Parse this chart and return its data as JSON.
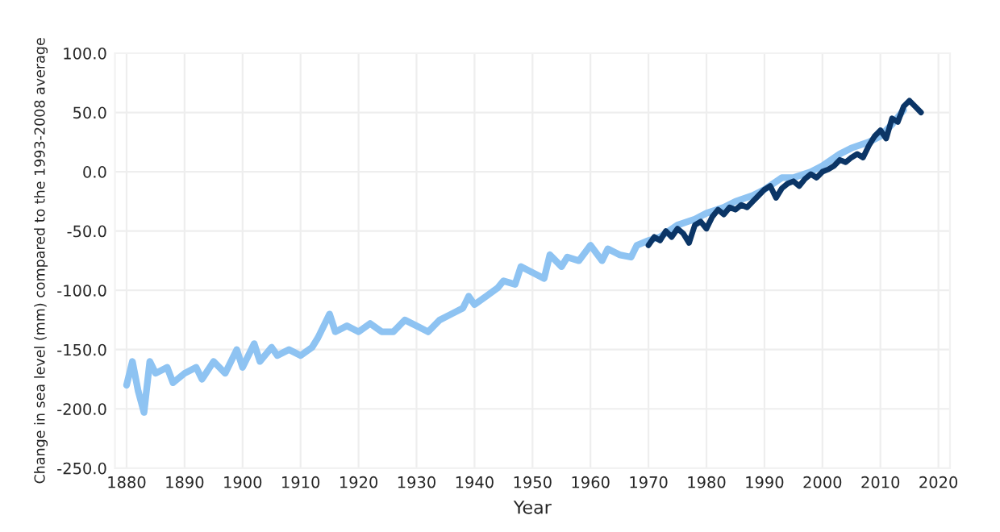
{
  "chart_data": {
    "type": "line",
    "xlabel": "Year",
    "ylabel": "Change in sea level (mm) compared to the 1993-2008 average",
    "xlim": [
      1878,
      2022
    ],
    "xticks": [
      1880,
      1890,
      1900,
      1910,
      1920,
      1930,
      1940,
      1950,
      1960,
      1970,
      1980,
      1990,
      2000,
      2010,
      2020
    ],
    "ylim": [
      -250,
      100
    ],
    "yticks": [
      {
        "value": -250,
        "label": "-250.0"
      },
      {
        "value": -200,
        "label": "-200.0"
      },
      {
        "value": -150,
        "label": "-150.0"
      },
      {
        "value": -100,
        "label": "-100.0"
      },
      {
        "value": -50,
        "label": "-50.0"
      },
      {
        "value": 0,
        "label": "0.0"
      },
      {
        "value": 50,
        "label": "50.0"
      },
      {
        "value": 100,
        "label": "100.0"
      }
    ],
    "grid": true,
    "legend": false,
    "marker": "none",
    "line_style": "solid",
    "series": [
      {
        "color": "#8ec3f2",
        "x": [
          1880,
          1881,
          1882,
          1883,
          1884,
          1885,
          1887,
          1888,
          1890,
          1892,
          1893,
          1895,
          1897,
          1899,
          1900,
          1902,
          1903,
          1905,
          1906,
          1908,
          1910,
          1912,
          1913,
          1915,
          1916,
          1918,
          1920,
          1922,
          1924,
          1926,
          1928,
          1930,
          1932,
          1934,
          1936,
          1938,
          1939,
          1940,
          1942,
          1944,
          1945,
          1947,
          1948,
          1950,
          1952,
          1953,
          1955,
          1956,
          1958,
          1960,
          1962,
          1963,
          1965,
          1967,
          1968,
          1970,
          1972,
          1975,
          1978,
          1980,
          1983,
          1985,
          1988,
          1990,
          1993,
          1995,
          1998,
          2000,
          2003,
          2005,
          2008,
          2010,
          2012,
          2014
        ],
        "values": [
          -180,
          -160,
          -185,
          -203,
          -160,
          -170,
          -165,
          -178,
          -170,
          -165,
          -175,
          -160,
          -170,
          -150,
          -165,
          -145,
          -160,
          -148,
          -155,
          -150,
          -155,
          -148,
          -140,
          -120,
          -135,
          -130,
          -135,
          -128,
          -135,
          -135,
          -125,
          -130,
          -135,
          -125,
          -120,
          -115,
          -105,
          -112,
          -105,
          -98,
          -92,
          -95,
          -80,
          -85,
          -90,
          -70,
          -80,
          -72,
          -75,
          -62,
          -75,
          -65,
          -70,
          -72,
          -62,
          -58,
          -55,
          -45,
          -40,
          -35,
          -30,
          -25,
          -20,
          -15,
          -5,
          -5,
          0,
          5,
          15,
          20,
          25,
          30,
          40,
          52
        ]
      },
      {
        "color": "#0b3566",
        "x": [
          1970,
          1971,
          1972,
          1973,
          1974,
          1975,
          1976,
          1977,
          1978,
          1979,
          1980,
          1981,
          1982,
          1983,
          1984,
          1985,
          1986,
          1987,
          1988,
          1989,
          1990,
          1991,
          1992,
          1993,
          1994,
          1995,
          1996,
          1997,
          1998,
          1999,
          2000,
          2001,
          2002,
          2003,
          2004,
          2005,
          2006,
          2007,
          2008,
          2009,
          2010,
          2011,
          2012,
          2013,
          2014,
          2015,
          2016,
          2017
        ],
        "values": [
          -62,
          -55,
          -58,
          -50,
          -55,
          -48,
          -52,
          -60,
          -45,
          -42,
          -48,
          -38,
          -32,
          -36,
          -30,
          -32,
          -28,
          -30,
          -25,
          -20,
          -15,
          -12,
          -22,
          -14,
          -10,
          -8,
          -12,
          -6,
          -2,
          -5,
          0,
          2,
          5,
          10,
          8,
          12,
          15,
          12,
          22,
          30,
          35,
          28,
          45,
          42,
          55,
          60,
          55,
          50
        ]
      }
    ]
  }
}
